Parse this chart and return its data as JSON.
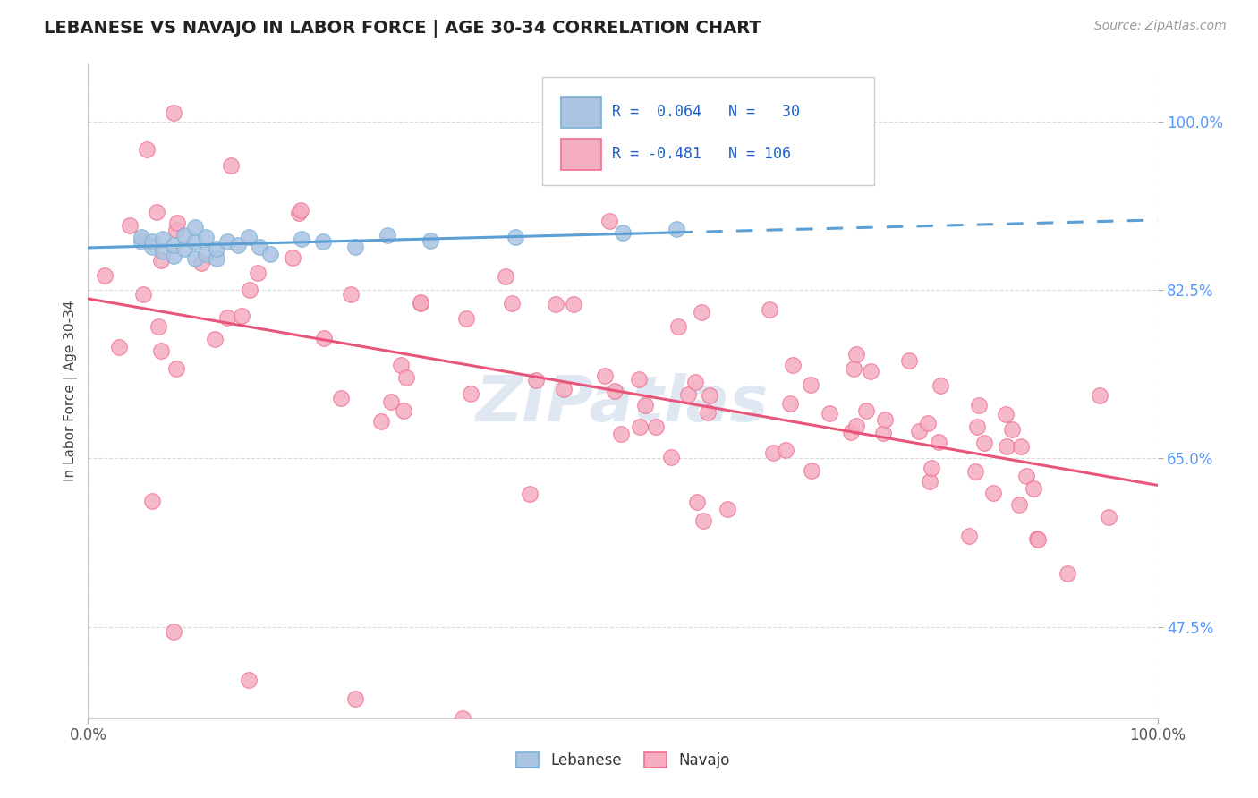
{
  "title": "LEBANESE VS NAVAJO IN LABOR FORCE | AGE 30-34 CORRELATION CHART",
  "source": "Source: ZipAtlas.com",
  "ylabel": "In Labor Force | Age 30-34",
  "xlim": [
    0.0,
    1.0
  ],
  "ylim": [
    0.38,
    1.06
  ],
  "yticks": [
    0.475,
    0.65,
    0.825,
    1.0
  ],
  "ytick_labels": [
    "47.5%",
    "65.0%",
    "82.5%",
    "100.0%"
  ],
  "xtick_labels": [
    "0.0%",
    "100.0%"
  ],
  "lebanese_color": "#aac4e2",
  "navajo_color": "#f5adc0",
  "lebanese_edge_color": "#7aafd4",
  "navajo_edge_color": "#f07090",
  "lebanese_line_color": "#5b9fd4",
  "navajo_line_color": "#e8557a",
  "background_color": "#ffffff",
  "grid_color": "#d8d8d8",
  "watermark_color": "#c8d8ea",
  "title_color": "#222222",
  "source_color": "#999999",
  "tick_color_y": "#5599ff",
  "tick_color_x": "#555555",
  "legend_text_color": "#1a5fcc",
  "ylabel_color": "#444444"
}
